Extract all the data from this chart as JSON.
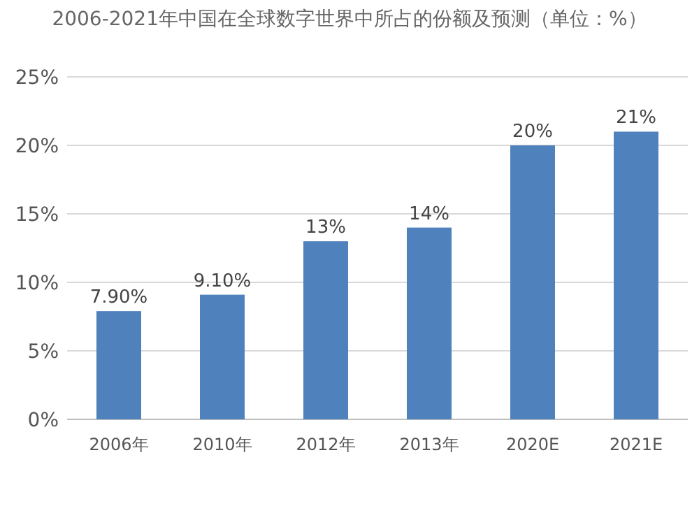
{
  "chart_data": {
    "type": "bar",
    "title": "2006-2021年中国在全球数字世界中所占的份额及预测（单位：%）",
    "categories": [
      "2006年",
      "2010年",
      "2012年",
      "2013年",
      "2020E",
      "2021E"
    ],
    "values": [
      7.9,
      9.1,
      13,
      14,
      20,
      21
    ],
    "value_labels": [
      "7.90%",
      "9.10%",
      "13%",
      "14%",
      "20%",
      "21%"
    ],
    "color": "#4f81bd",
    "ylim": [
      0,
      25
    ],
    "yticks": [
      {
        "value": 0,
        "label": "0%"
      },
      {
        "value": 5,
        "label": "5%"
      },
      {
        "value": 10,
        "label": "10%"
      },
      {
        "value": 15,
        "label": "15%"
      },
      {
        "value": 20,
        "label": "20%"
      },
      {
        "value": 25,
        "label": "25%"
      }
    ],
    "grid": "y"
  }
}
